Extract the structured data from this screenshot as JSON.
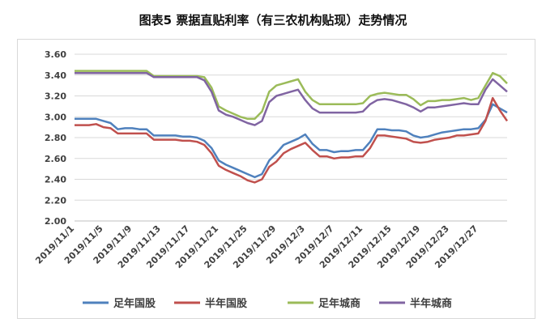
{
  "chart_data": {
    "type": "line",
    "title": "图表5  票据直贴利率（有三农机构贴现）走势情况",
    "xlabel": "",
    "ylabel": "",
    "ylim": [
      2.0,
      3.6
    ],
    "y_ticks": [
      "3.60",
      "3.40",
      "3.20",
      "3.00",
      "2.80",
      "2.60",
      "2.40",
      "2.20",
      "2.00"
    ],
    "x": [
      "2019/11/1",
      "2019/11/2",
      "2019/11/3",
      "2019/11/4",
      "2019/11/5",
      "2019/11/6",
      "2019/11/7",
      "2019/11/8",
      "2019/11/9",
      "2019/11/10",
      "2019/11/11",
      "2019/11/12",
      "2019/11/13",
      "2019/11/14",
      "2019/11/15",
      "2019/11/16",
      "2019/11/17",
      "2019/11/18",
      "2019/11/19",
      "2019/11/20",
      "2019/11/21",
      "2019/11/22",
      "2019/11/23",
      "2019/11/24",
      "2019/11/25",
      "2019/11/26",
      "2019/11/27",
      "2019/11/28",
      "2019/11/29",
      "2019/11/30",
      "2019/12/1",
      "2019/12/2",
      "2019/12/3",
      "2019/12/4",
      "2019/12/5",
      "2019/12/6",
      "2019/12/7",
      "2019/12/8",
      "2019/12/9",
      "2019/12/10",
      "2019/12/11",
      "2019/12/12",
      "2019/12/13",
      "2019/12/14",
      "2019/12/15",
      "2019/12/16",
      "2019/12/17",
      "2019/12/18",
      "2019/12/19",
      "2019/12/20",
      "2019/12/21",
      "2019/12/22",
      "2019/12/23",
      "2019/12/24",
      "2019/12/25",
      "2019/12/26",
      "2019/12/27",
      "2019/12/28",
      "2019/12/29",
      "2019/12/30",
      "2019/12/31"
    ],
    "x_tick_labels": [
      "2019/11/1",
      "2019/11/5",
      "2019/11/9",
      "2019/11/13",
      "2019/11/17",
      "2019/11/21",
      "2019/11/25",
      "2019/11/29",
      "2019/12/3",
      "2019/12/7",
      "2019/12/11",
      "2019/12/15",
      "2019/12/19",
      "2019/12/23",
      "2019/12/27"
    ],
    "grid": true,
    "legend_position": "bottom",
    "series": [
      {
        "name": "足年国股",
        "color": "#4f81bd",
        "values": [
          2.98,
          2.98,
          2.98,
          2.98,
          2.96,
          2.94,
          2.88,
          2.89,
          2.89,
          2.88,
          2.88,
          2.82,
          2.82,
          2.82,
          2.82,
          2.81,
          2.81,
          2.8,
          2.77,
          2.7,
          2.58,
          2.54,
          2.51,
          2.48,
          2.45,
          2.42,
          2.45,
          2.58,
          2.65,
          2.73,
          2.76,
          2.79,
          2.83,
          2.74,
          2.68,
          2.68,
          2.66,
          2.67,
          2.67,
          2.68,
          2.68,
          2.76,
          2.88,
          2.88,
          2.87,
          2.87,
          2.86,
          2.82,
          2.8,
          2.81,
          2.83,
          2.85,
          2.86,
          2.87,
          2.88,
          2.88,
          2.89,
          2.97,
          3.12,
          3.08,
          3.04
        ]
      },
      {
        "name": "半年国股",
        "color": "#c0504d",
        "values": [
          2.92,
          2.92,
          2.92,
          2.93,
          2.9,
          2.89,
          2.84,
          2.84,
          2.84,
          2.84,
          2.84,
          2.78,
          2.78,
          2.78,
          2.78,
          2.77,
          2.77,
          2.76,
          2.73,
          2.65,
          2.53,
          2.49,
          2.46,
          2.43,
          2.39,
          2.37,
          2.4,
          2.52,
          2.57,
          2.65,
          2.69,
          2.72,
          2.75,
          2.68,
          2.62,
          2.62,
          2.6,
          2.61,
          2.61,
          2.62,
          2.62,
          2.7,
          2.82,
          2.82,
          2.81,
          2.8,
          2.79,
          2.76,
          2.75,
          2.76,
          2.78,
          2.79,
          2.8,
          2.82,
          2.82,
          2.83,
          2.84,
          2.96,
          3.18,
          3.06,
          2.96
        ]
      },
      {
        "name": "足年城商",
        "color": "#9bbb59",
        "values": [
          3.44,
          3.44,
          3.44,
          3.44,
          3.44,
          3.44,
          3.44,
          3.44,
          3.44,
          3.44,
          3.44,
          3.39,
          3.39,
          3.39,
          3.39,
          3.39,
          3.39,
          3.39,
          3.38,
          3.28,
          3.1,
          3.06,
          3.03,
          3.0,
          2.98,
          2.98,
          3.05,
          3.24,
          3.3,
          3.32,
          3.34,
          3.36,
          3.24,
          3.16,
          3.12,
          3.12,
          3.12,
          3.12,
          3.12,
          3.12,
          3.13,
          3.2,
          3.22,
          3.23,
          3.22,
          3.21,
          3.21,
          3.17,
          3.11,
          3.15,
          3.15,
          3.16,
          3.16,
          3.17,
          3.18,
          3.16,
          3.18,
          3.3,
          3.42,
          3.39,
          3.32
        ]
      },
      {
        "name": "半年城商",
        "color": "#8064a2",
        "values": [
          3.42,
          3.42,
          3.42,
          3.42,
          3.42,
          3.42,
          3.42,
          3.42,
          3.42,
          3.42,
          3.42,
          3.38,
          3.38,
          3.38,
          3.38,
          3.38,
          3.38,
          3.38,
          3.35,
          3.24,
          3.06,
          3.02,
          3.0,
          2.97,
          2.94,
          2.92,
          2.96,
          3.14,
          3.2,
          3.22,
          3.24,
          3.26,
          3.16,
          3.08,
          3.04,
          3.04,
          3.04,
          3.04,
          3.04,
          3.04,
          3.05,
          3.12,
          3.16,
          3.17,
          3.16,
          3.14,
          3.12,
          3.09,
          3.05,
          3.09,
          3.09,
          3.1,
          3.11,
          3.12,
          3.13,
          3.12,
          3.12,
          3.26,
          3.36,
          3.3,
          3.24
        ]
      }
    ]
  }
}
